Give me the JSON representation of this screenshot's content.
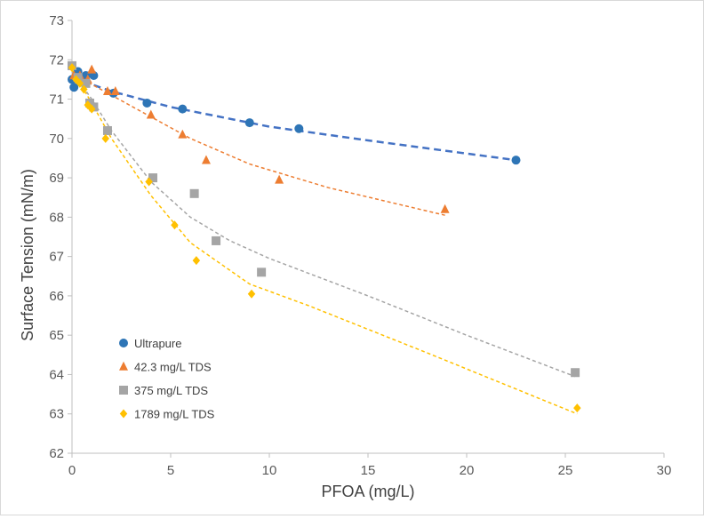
{
  "chart_data": {
    "type": "scatter",
    "title": "",
    "xlabel": "PFOA (mg/L)",
    "ylabel": "Surface Tension (mN/m)",
    "xlim": [
      0,
      30
    ],
    "ylim": [
      62,
      73
    ],
    "xticks": [
      "0",
      "5",
      "10",
      "15",
      "20",
      "25",
      "30"
    ],
    "yticks": [
      "62",
      "63",
      "64",
      "65",
      "66",
      "67",
      "68",
      "69",
      "70",
      "71",
      "72",
      "73"
    ],
    "grid": false,
    "legend_position": "bottom-left inside plot",
    "series": [
      {
        "name": "Ultrapure",
        "marker": "circle",
        "color": "#2e75b6",
        "trend_color": "#4472c4",
        "points": [
          [
            0.0,
            71.5
          ],
          [
            0.1,
            71.3
          ],
          [
            0.3,
            71.7
          ],
          [
            0.5,
            71.5
          ],
          [
            0.7,
            71.6
          ],
          [
            1.1,
            71.6
          ],
          [
            2.1,
            71.15
          ],
          [
            3.8,
            70.9
          ],
          [
            5.6,
            70.75
          ],
          [
            9.0,
            70.4
          ],
          [
            11.5,
            70.25
          ],
          [
            22.5,
            69.45
          ]
        ],
        "trend": [
          [
            0.0,
            71.55
          ],
          [
            2,
            71.2
          ],
          [
            5,
            70.8
          ],
          [
            10,
            70.3
          ],
          [
            15,
            69.95
          ],
          [
            22.5,
            69.45
          ]
        ]
      },
      {
        "name": "42.3 mg/L TDS",
        "marker": "triangle",
        "color": "#ed7d31",
        "trend_color": "#ed7d31",
        "points": [
          [
            0.1,
            71.6
          ],
          [
            0.4,
            71.6
          ],
          [
            0.8,
            71.5
          ],
          [
            1.0,
            71.75
          ],
          [
            1.8,
            71.2
          ],
          [
            2.2,
            71.2
          ],
          [
            4.0,
            70.6
          ],
          [
            5.6,
            70.1
          ],
          [
            6.8,
            69.45
          ],
          [
            10.5,
            68.95
          ],
          [
            18.9,
            68.2
          ]
        ],
        "trend": [
          [
            0.0,
            71.65
          ],
          [
            2,
            71.1
          ],
          [
            4,
            70.55
          ],
          [
            6,
            70.0
          ],
          [
            9,
            69.35
          ],
          [
            13,
            68.75
          ],
          [
            18.9,
            68.05
          ]
        ]
      },
      {
        "name": "375 mg/L TDS",
        "marker": "square",
        "color": "#a5a5a5",
        "trend_color": "#a5a5a5",
        "points": [
          [
            0.0,
            71.85
          ],
          [
            0.3,
            71.55
          ],
          [
            0.7,
            71.4
          ],
          [
            0.9,
            70.9
          ],
          [
            1.1,
            70.8
          ],
          [
            1.8,
            70.2
          ],
          [
            4.1,
            69.0
          ],
          [
            6.2,
            68.6
          ],
          [
            7.3,
            67.4
          ],
          [
            9.6,
            66.6
          ],
          [
            25.5,
            64.05
          ]
        ],
        "trend": [
          [
            0.0,
            71.7
          ],
          [
            1,
            71.0
          ],
          [
            2,
            70.2
          ],
          [
            4,
            68.9
          ],
          [
            6,
            68.0
          ],
          [
            8,
            67.4
          ],
          [
            10,
            66.95
          ],
          [
            15,
            66.0
          ],
          [
            20,
            65.0
          ],
          [
            25.5,
            63.95
          ]
        ]
      },
      {
        "name": "1789 mg/L TDS",
        "marker": "diamond",
        "color": "#ffc000",
        "trend_color": "#ffc000",
        "points": [
          [
            0.0,
            71.8
          ],
          [
            0.2,
            71.5
          ],
          [
            0.4,
            71.4
          ],
          [
            0.6,
            71.25
          ],
          [
            0.8,
            70.85
          ],
          [
            1.0,
            70.75
          ],
          [
            1.7,
            70.0
          ],
          [
            3.9,
            68.9
          ],
          [
            5.2,
            67.8
          ],
          [
            6.3,
            66.9
          ],
          [
            9.1,
            66.05
          ],
          [
            25.6,
            63.15
          ]
        ],
        "trend": [
          [
            0.0,
            71.75
          ],
          [
            1,
            70.9
          ],
          [
            2,
            70.0
          ],
          [
            4,
            68.55
          ],
          [
            6,
            67.35
          ],
          [
            9,
            66.3
          ],
          [
            12,
            65.75
          ],
          [
            18,
            64.55
          ],
          [
            25.6,
            63.0
          ]
        ]
      }
    ]
  }
}
